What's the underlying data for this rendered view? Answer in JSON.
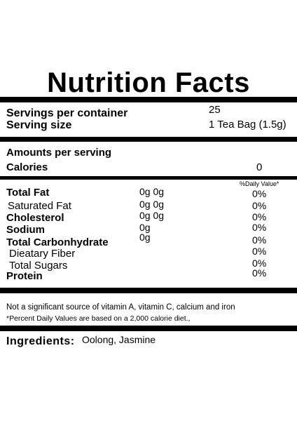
{
  "label": {
    "title": "Nutrition Facts",
    "servings_label": "Servings per container",
    "servings_value": "25",
    "serving_size_label": "Serving size",
    "serving_size_value": "1 Tea Bag (1.5g)",
    "amounts_label": "Amounts per serving",
    "calories_label": "Calories",
    "calories_value": "0",
    "dv_header": "%Daily Value*",
    "nutrients": [
      {
        "name": "Total Fat",
        "amount": "0g 0g",
        "dv": "0%"
      },
      {
        "name": "Saturated Fat",
        "amount": "0g 0g",
        "dv": "0%"
      },
      {
        "name": "Cholesterol",
        "amount": "0g 0g",
        "dv": "0%"
      },
      {
        "name": "Sodium",
        "amount": "0g",
        "dv": "0%"
      },
      {
        "name": "Total Carbonhydrate",
        "amount": "0g",
        "dv": "0%"
      },
      {
        "name": "Dieatary Fiber",
        "amount": "",
        "dv": "0%"
      },
      {
        "name": "Total Sugars",
        "amount": "",
        "dv": "0%"
      },
      {
        "name": "Protein",
        "amount": "",
        "dv": "0%"
      }
    ],
    "footnote_1": "Not a significant source of vitamin A, vitamin C, calcium and iron",
    "footnote_2": "*Percent Daily Values are based on a 2,000 calorie diet.,",
    "ingredients_label": "Ingredients:",
    "ingredients_value": "Oolong, Jasmine"
  }
}
